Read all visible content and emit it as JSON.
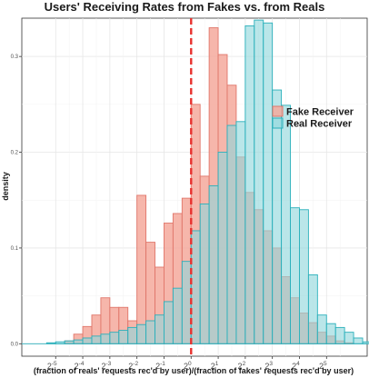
{
  "chart_data": {
    "type": "histogram",
    "title": "Users' Receiving Rates from Fakes vs. from Reals",
    "xlabel": "(fraction of reals' requests rec'd by user)/(fraction of fakes' requests rec'd by user)",
    "ylabel": "density",
    "x_scale": "log2",
    "xlim": [
      -6.25,
      6.5
    ],
    "ylim": [
      -0.013,
      0.34
    ],
    "x_ticks": [
      {
        "base": "2",
        "exp": "-5",
        "value": -5
      },
      {
        "base": "2",
        "exp": "-4",
        "value": -4
      },
      {
        "base": "2",
        "exp": "-3",
        "value": -3
      },
      {
        "base": "2",
        "exp": "-2",
        "value": -2
      },
      {
        "base": "2",
        "exp": "-1",
        "value": -1
      },
      {
        "base": "2",
        "exp": "0",
        "value": 0
      },
      {
        "base": "2",
        "exp": "1",
        "value": 1
      },
      {
        "base": "2",
        "exp": "2",
        "value": 2
      },
      {
        "base": "2",
        "exp": "3",
        "value": 3
      },
      {
        "base": "2",
        "exp": "4",
        "value": 4
      },
      {
        "base": "2",
        "exp": "5",
        "value": 5
      }
    ],
    "y_ticks": [
      "0.0",
      "0.1",
      "0.2",
      "0.3"
    ],
    "y_tick_values": [
      0,
      0.1,
      0.2,
      0.3
    ],
    "bin_width": 0.3333,
    "bin_start": -6.0,
    "reference_line": {
      "x": 0,
      "color": "#e8312e",
      "style": "dashed"
    },
    "grid": true,
    "legend_position": "right",
    "series": [
      {
        "name": "Fake Receiver",
        "fill": "#f4a99c",
        "stroke": "#e0766a",
        "values": [
          0.0,
          0.0,
          0.0,
          0.0,
          0.003,
          0.01,
          0.018,
          0.03,
          0.048,
          0.038,
          0.038,
          0.024,
          0.155,
          0.106,
          0.08,
          0.126,
          0.136,
          0.152,
          0.25,
          0.175,
          0.33,
          0.302,
          0.27,
          0.195,
          0.158,
          0.14,
          0.118,
          0.1,
          0.07,
          0.048,
          0.032,
          0.022,
          0.012,
          0.008,
          0.003,
          0.001,
          0.0,
          0.0
        ]
      },
      {
        "name": "Real Receiver",
        "fill": "#8fd6dc",
        "stroke": "#2ab0bb",
        "values": [
          0.0,
          0.0,
          0.001,
          0.002,
          0.003,
          0.004,
          0.006,
          0.008,
          0.01,
          0.012,
          0.014,
          0.017,
          0.02,
          0.024,
          0.03,
          0.044,
          0.058,
          0.086,
          0.118,
          0.146,
          0.165,
          0.2,
          0.228,
          0.232,
          0.332,
          0.338,
          0.335,
          0.265,
          0.249,
          0.142,
          0.14,
          0.072,
          0.03,
          0.021,
          0.017,
          0.012,
          0.006,
          0.002
        ]
      }
    ]
  }
}
